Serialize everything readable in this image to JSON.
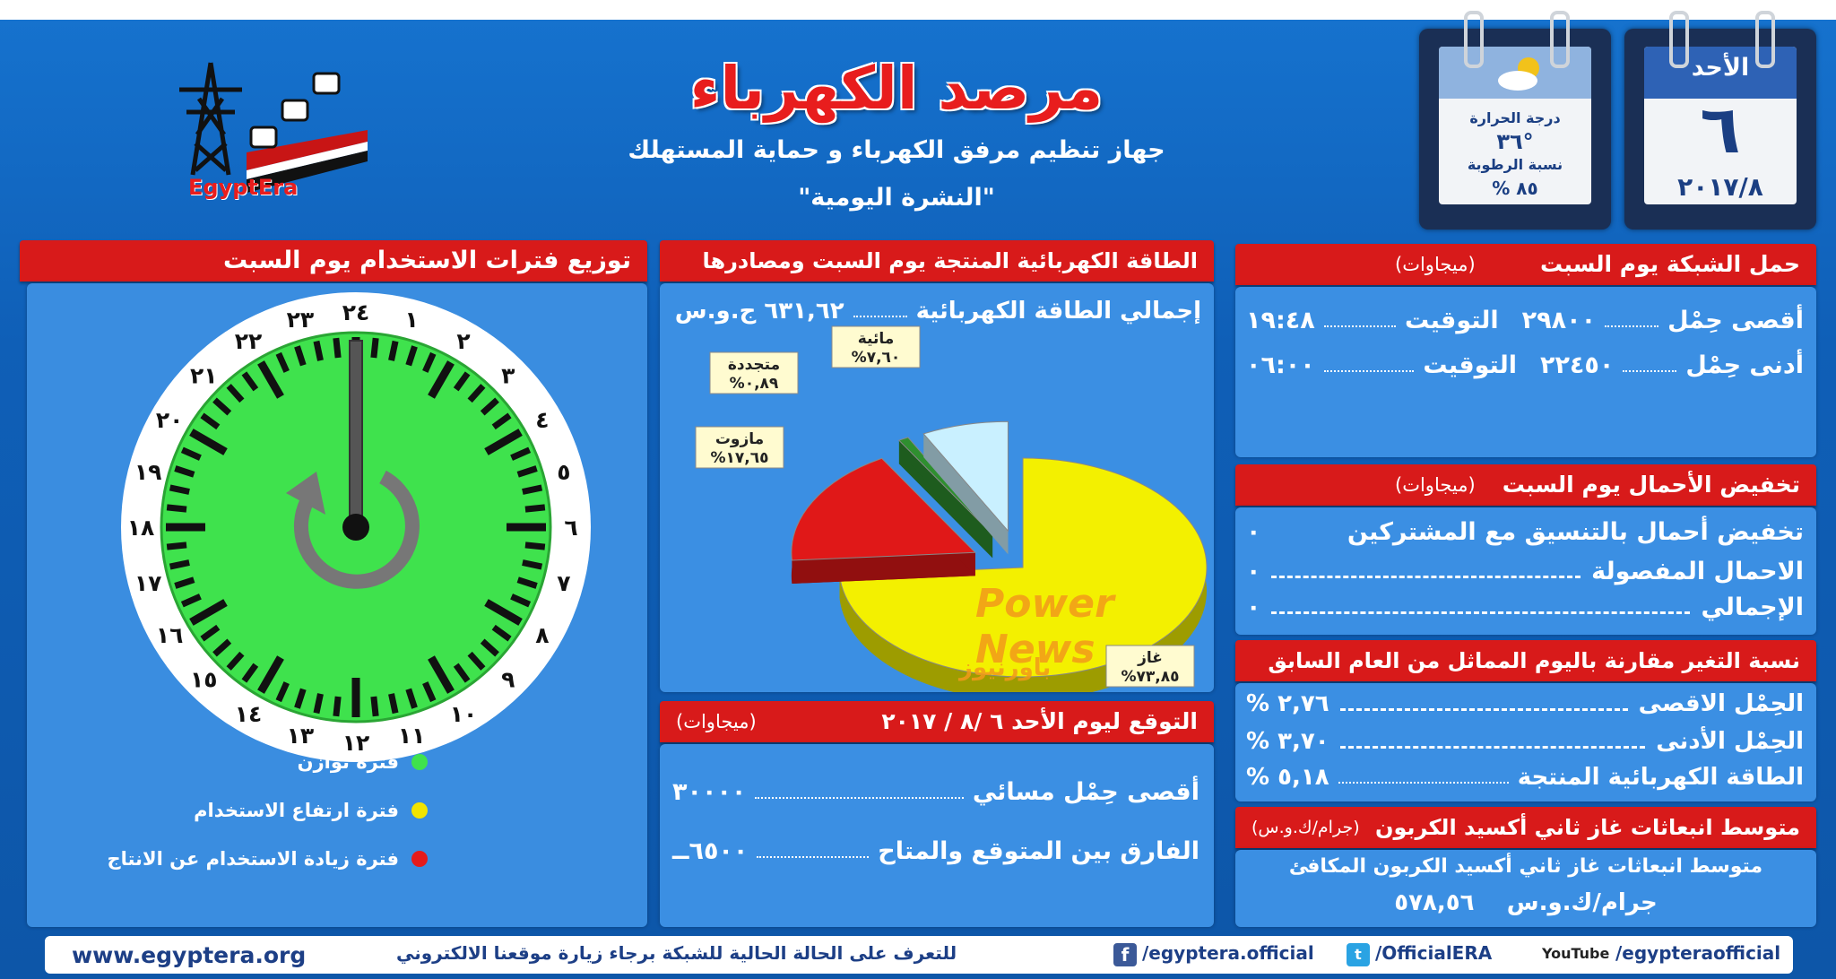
{
  "header": {
    "title": "مرصد الكهرباء",
    "subtitle": "جهاز تنظيم مرفق الكهرباء و حماية المستهلك",
    "bulletin": "\"النشرة اليومية\"",
    "logo_text": "EgyptEra"
  },
  "calendar": {
    "day_name": "الأحد",
    "day_number": "٦",
    "month_year": "٢٠١٧/٨"
  },
  "weather": {
    "temp_label": "درجة الحرارة",
    "temp_value": "٣٦°",
    "humidity_label": "نسبة الرطوبة",
    "humidity_value": "٨٥ %"
  },
  "grid_load": {
    "title": "حمل الشبكة يوم السبت",
    "unit": "(ميجاوات)",
    "rows": [
      {
        "label": "أقصى حِمْل",
        "value": "٢٩٨٠٠",
        "time_label": "التوقيت",
        "time": "١٩:٤٨"
      },
      {
        "label": "أدنى حِمْل",
        "value": "٢٢٤٥٠",
        "time_label": "التوقيت",
        "time": "٠٦:٠٠"
      }
    ]
  },
  "load_reduction": {
    "title": "تخفيض الأحمال يوم السبت",
    "unit": "(ميجاوات)",
    "rows": [
      {
        "label": "تخفيض أحمال بالتنسيق مع المشتركين",
        "value": "٠"
      },
      {
        "label": "الاحمال المفصولة",
        "value": "٠"
      },
      {
        "label": "الإجمالي",
        "value": "٠"
      }
    ]
  },
  "change": {
    "title": "نسبة التغير مقارنة باليوم المماثل من العام السابق",
    "rows": [
      {
        "label": "الحِمْل الاقصى",
        "value": "٢,٧٦ %"
      },
      {
        "label": "الحِمْل الأدنى",
        "value": "٣,٧٠ %"
      },
      {
        "label": "الطاقة الكهربائية المنتجة",
        "value": "٥,١٨ %"
      }
    ]
  },
  "emissions": {
    "title": "متوسط انبعاثات غاز ثاني أكسيد الكربون",
    "unit": "(جرام/ك.و.س)",
    "line1": "متوسط انبعاثات غاز ثاني أكسيد الكربون المكافئ",
    "value": "٥٧٨,٥٦",
    "value_unit": "جرام/ك.و.س"
  },
  "energy": {
    "title": "الطاقة الكهربائية المنتجة يوم السبت ومصادرها",
    "total_label": "إجمالي الطاقة الكهربائية",
    "total_value": "٦٣١,٦٢ ج.و.س",
    "watermark": "Power News",
    "watermark_ar": "باورنيوز"
  },
  "chart_data": {
    "type": "pie",
    "title": "",
    "series": [
      {
        "name": "غاز",
        "label": "%٧٣,٨٥",
        "value": 73.85,
        "color": "#f3f000"
      },
      {
        "name": "مازوت",
        "label": "%١٧,٦٥",
        "value": 17.65,
        "color": "#e01818"
      },
      {
        "name": "متجددة",
        "label": "%٠,٨٩",
        "value": 0.89,
        "color": "#2f8f2f"
      },
      {
        "name": "مائية",
        "label": "%٧,٦٠",
        "value": 7.6,
        "color": "#c9f0ff"
      }
    ]
  },
  "forecast": {
    "title": "التوقع ليوم الأحد ٦ /٨ / ٢٠١٧",
    "unit": "(ميجاوات)",
    "rows": [
      {
        "label": "أقصى حِمْل مسائي",
        "value": "٣٠٠٠٠"
      },
      {
        "label": "الفارق بين المتوقع والمتاح",
        "value": "٦٥٠٠ــ"
      }
    ]
  },
  "usage": {
    "title": "توزيع فترات الاستخدام يوم السبت",
    "hours": [
      "٢٤",
      "١",
      "٢",
      "٣",
      "٤",
      "٥",
      "٦",
      "٧",
      "٨",
      "٩",
      "١٠",
      "١١",
      "١٢",
      "١٣",
      "١٤",
      "١٥",
      "١٦",
      "١٧",
      "١٨",
      "١٩",
      "٢٠",
      "٢١",
      "٢٢",
      "٢٣"
    ],
    "legend": [
      {
        "label": "فترة توازن",
        "color": "#3fe24d"
      },
      {
        "label": "فترة ارتفاع الاستخدام",
        "color": "#f1e400"
      },
      {
        "label": "فترة زيادة الاستخدام عن الانتاج",
        "color": "#e51b1b"
      }
    ]
  },
  "footer": {
    "website": "www.egyptera.org",
    "visit_text": "للتعرف على الحالة الحالية للشبكة برجاء زيارة موقعنا الالكتروني",
    "facebook": "/egyptera.official",
    "twitter": "/OfficialERA",
    "youtube": "/egypteraofficial",
    "youtube_label": "YouTube"
  }
}
